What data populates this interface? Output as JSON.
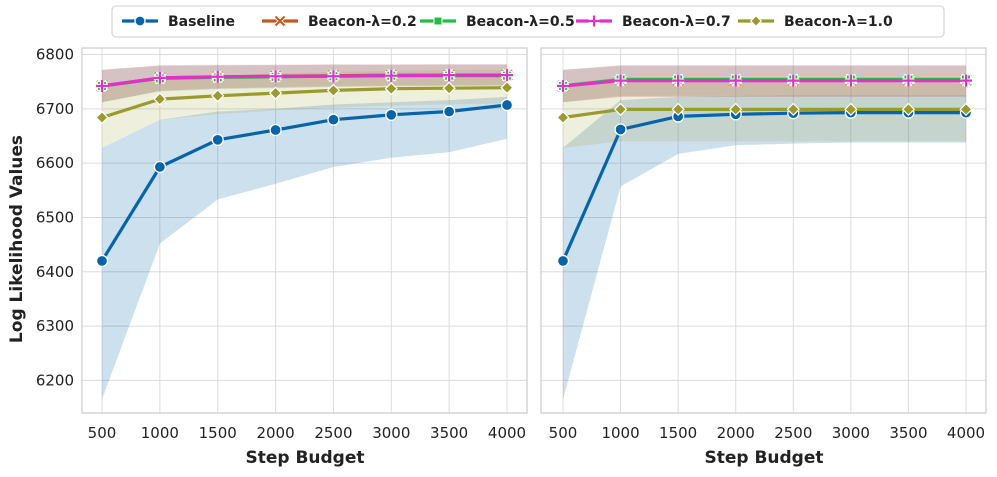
{
  "chart_data": [
    {
      "type": "line",
      "panel": "left",
      "xlabel": "Step Budget",
      "ylabel": "Log Likelihood Values",
      "x": [
        500,
        1000,
        1500,
        2000,
        2500,
        3000,
        3500,
        4000
      ],
      "xticks": [
        "500",
        "1000",
        "1500",
        "2000",
        "2500",
        "3000",
        "3500",
        "4000"
      ],
      "yticks": [
        "6200",
        "6300",
        "6400",
        "6500",
        "6600",
        "6700",
        "6800"
      ],
      "ylim": [
        6140,
        6812
      ],
      "grid": true,
      "series": [
        {
          "name": "Baseline",
          "marker": "circle",
          "values": [
            6420,
            6593,
            6643,
            6661,
            6680,
            6689,
            6695,
            6707
          ],
          "lower": [
            6165,
            6452,
            6533,
            6562,
            6593,
            6610,
            6620,
            6645
          ],
          "upper": [
            6628,
            6680,
            6695,
            6700,
            6708,
            6712,
            6716,
            6722
          ]
        },
        {
          "name": "Beacon-λ=0.2",
          "marker": "x",
          "values": [
            6742,
            6757,
            6759,
            6760,
            6761,
            6762,
            6762,
            6762
          ],
          "lower": [
            6712,
            6733,
            6738,
            6740,
            6742,
            6743,
            6743,
            6744
          ],
          "upper": [
            6772,
            6780,
            6781,
            6781,
            6782,
            6782,
            6782,
            6782
          ]
        },
        {
          "name": "Beacon-λ=0.5",
          "marker": "square",
          "values": [
            6742,
            6756,
            6758,
            6759,
            6760,
            6761,
            6761,
            6761
          ],
          "lower": [
            6712,
            6732,
            6736,
            6738,
            6740,
            6741,
            6742,
            6742
          ],
          "upper": [
            6771,
            6779,
            6780,
            6780,
            6781,
            6781,
            6781,
            6781
          ]
        },
        {
          "name": "Beacon-λ=0.7",
          "marker": "plus",
          "values": [
            6742,
            6757,
            6759,
            6760,
            6760,
            6761,
            6762,
            6762
          ],
          "lower": [
            6712,
            6733,
            6737,
            6739,
            6741,
            6742,
            6743,
            6743
          ],
          "upper": [
            6772,
            6780,
            6780,
            6781,
            6781,
            6781,
            6782,
            6782
          ]
        },
        {
          "name": "Beacon-λ=1.0",
          "marker": "diamond",
          "values": [
            6684,
            6718,
            6724,
            6729,
            6734,
            6737,
            6738,
            6739
          ],
          "lower": [
            6628,
            6680,
            6690,
            6697,
            6702,
            6706,
            6708,
            6710
          ],
          "upper": [
            6746,
            6758,
            6762,
            6765,
            6768,
            6770,
            6771,
            6772
          ]
        }
      ]
    },
    {
      "type": "line",
      "panel": "right",
      "xlabel": "Step Budget",
      "ylabel": "",
      "x": [
        500,
        1000,
        1500,
        2000,
        2500,
        3000,
        3500,
        4000
      ],
      "xticks": [
        "500",
        "1000",
        "1500",
        "2000",
        "2500",
        "3000",
        "3500",
        "4000"
      ],
      "yticks": [],
      "ylim": [
        6140,
        6812
      ],
      "grid": true,
      "series": [
        {
          "name": "Baseline",
          "marker": "circle",
          "values": [
            6420,
            6662,
            6686,
            6690,
            6692,
            6693,
            6693,
            6693
          ],
          "lower": [
            6165,
            6557,
            6617,
            6633,
            6636,
            6638,
            6638,
            6638
          ],
          "upper": [
            6628,
            6716,
            6722,
            6724,
            6725,
            6725,
            6725,
            6725
          ]
        },
        {
          "name": "Beacon-λ=0.2",
          "marker": "x",
          "values": [
            6742,
            6753,
            6753,
            6753,
            6753,
            6753,
            6753,
            6753
          ],
          "lower": [
            6712,
            6722,
            6722,
            6722,
            6722,
            6722,
            6722,
            6722
          ],
          "upper": [
            6772,
            6780,
            6780,
            6780,
            6780,
            6780,
            6780,
            6780
          ]
        },
        {
          "name": "Beacon-λ=0.5",
          "marker": "square",
          "values": [
            6742,
            6754,
            6754,
            6754,
            6754,
            6754,
            6754,
            6754
          ],
          "lower": [
            6712,
            6724,
            6724,
            6724,
            6724,
            6724,
            6724,
            6724
          ],
          "upper": [
            6771,
            6779,
            6779,
            6779,
            6779,
            6779,
            6779,
            6779
          ]
        },
        {
          "name": "Beacon-λ=0.7",
          "marker": "plus",
          "values": [
            6742,
            6752,
            6752,
            6752,
            6752,
            6752,
            6752,
            6752
          ],
          "lower": [
            6712,
            6722,
            6722,
            6722,
            6722,
            6722,
            6722,
            6722
          ],
          "upper": [
            6772,
            6780,
            6780,
            6780,
            6780,
            6780,
            6780,
            6780
          ]
        },
        {
          "name": "Beacon-λ=1.0",
          "marker": "diamond",
          "values": [
            6684,
            6699,
            6699,
            6699,
            6699,
            6699,
            6699,
            6699
          ],
          "lower": [
            6628,
            6640,
            6640,
            6640,
            6640,
            6640,
            6640,
            6640
          ],
          "upper": [
            6746,
            6758,
            6758,
            6758,
            6758,
            6758,
            6758,
            6758
          ]
        }
      ]
    }
  ],
  "legend": {
    "position": "top-center",
    "items": [
      {
        "label": "Baseline",
        "marker": "circle",
        "color": "#0764a8"
      },
      {
        "label": "Beacon-λ=0.2",
        "marker": "x",
        "color": "#c7571c"
      },
      {
        "label": "Beacon-λ=0.5",
        "marker": "square",
        "color": "#21be43"
      },
      {
        "label": "Beacon-λ=0.7",
        "marker": "plus",
        "color": "#e031ca"
      },
      {
        "label": "Beacon-λ=1.0",
        "marker": "diamond",
        "color": "#9a9a2e"
      }
    ]
  },
  "colors": {
    "Baseline": "#0764a8",
    "Beacon-λ=0.2": "#c7571c",
    "Beacon-λ=0.5": "#21be43",
    "Beacon-λ=0.7": "#e031ca",
    "Beacon-λ=1.0": "#9a9a2e",
    "grid": "#dcdcdc",
    "frame": "#cccccc"
  }
}
